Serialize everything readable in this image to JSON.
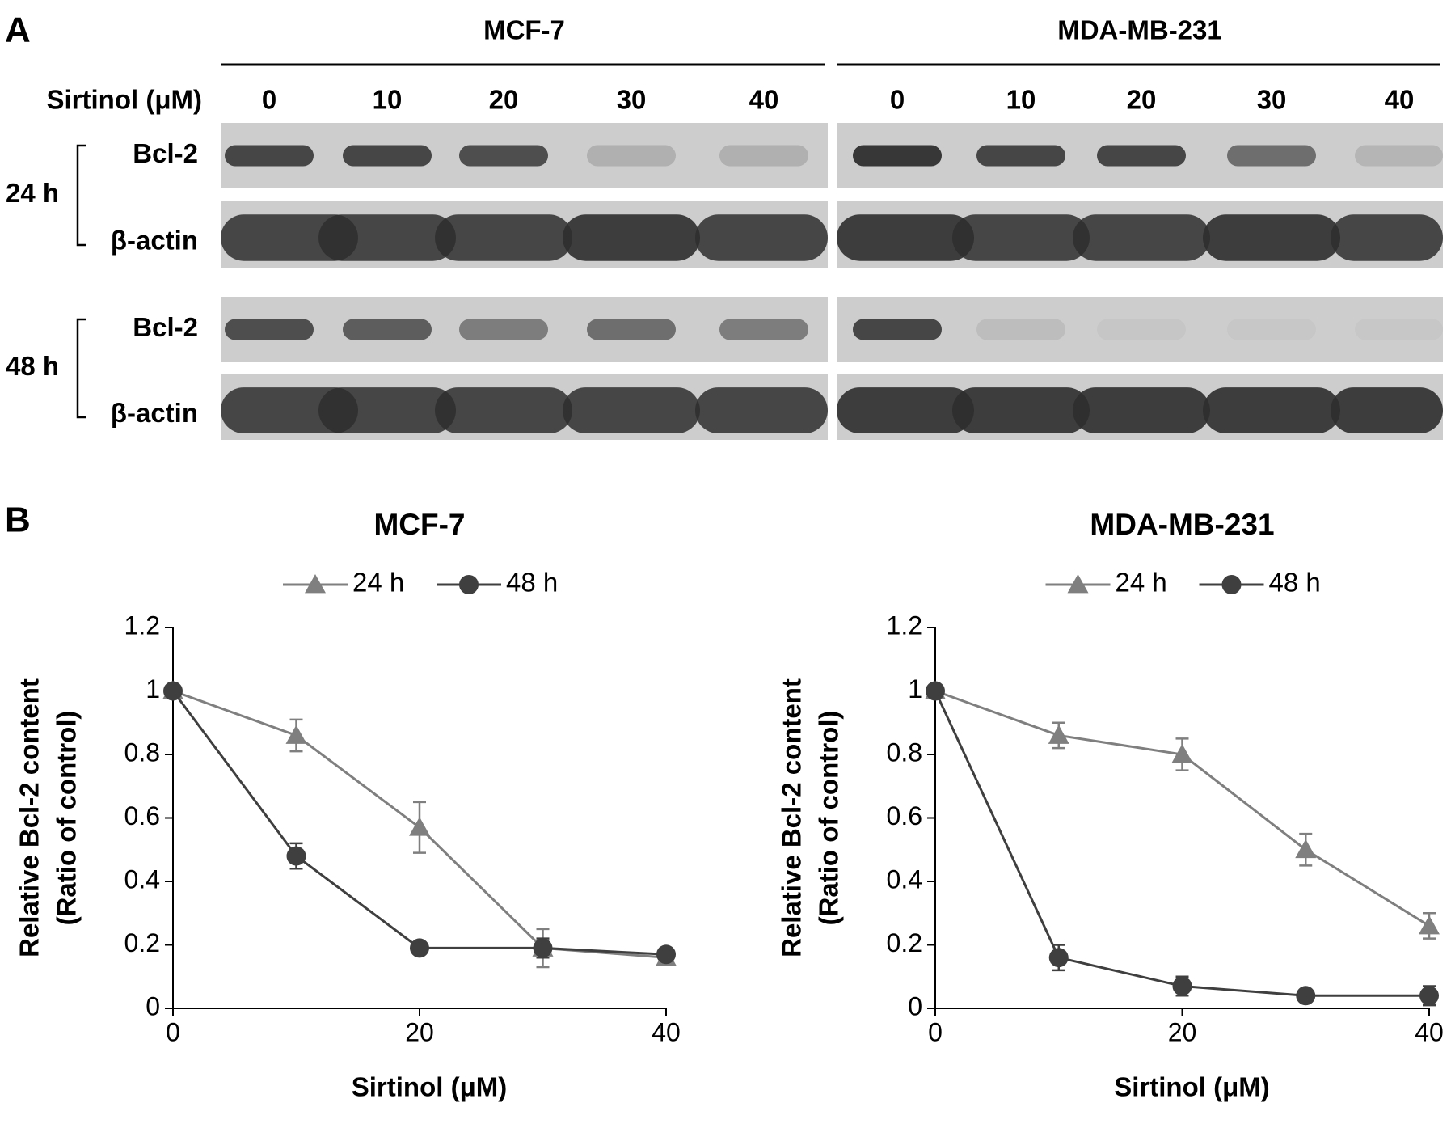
{
  "panel_a": {
    "label": "A",
    "dose_label": "Sirtinol (μM)",
    "groups": [
      {
        "name": "MCF-7",
        "doses": [
          0,
          10,
          20,
          30,
          40
        ]
      },
      {
        "name": "MDA-MB-231",
        "doses": [
          0,
          10,
          20,
          30,
          40
        ]
      }
    ],
    "timepoints": [
      {
        "label": "24 h",
        "rows": [
          "Bcl-2",
          "β-actin"
        ]
      },
      {
        "label": "48 h",
        "rows": [
          "Bcl-2",
          "β-actin"
        ]
      }
    ]
  },
  "panel_b": {
    "label": "B"
  },
  "chart_data": [
    {
      "type": "line",
      "title": "MCF-7",
      "x": [
        0,
        10,
        20,
        30,
        40
      ],
      "series": [
        {
          "name": "24 h",
          "color": "#7f7f7f",
          "marker": "triangle",
          "values": [
            1,
            0.86,
            0.57,
            0.19,
            0.16
          ],
          "errors": [
            0,
            0.05,
            0.08,
            0.06,
            0.01
          ]
        },
        {
          "name": "48 h",
          "color": "#3f3f3f",
          "marker": "circle",
          "values": [
            1,
            0.48,
            0.19,
            0.19,
            0.17
          ],
          "errors": [
            0,
            0.04,
            0.01,
            0.03,
            0.01
          ]
        }
      ],
      "xlabel": "Sirtinol (μM)",
      "ylabel": [
        "Relative Bcl-2 content",
        "(Ratio of control)"
      ],
      "xlim": [
        0,
        40
      ],
      "xticks": [
        0,
        20,
        40
      ],
      "ylim": [
        0,
        1.2
      ],
      "yticks": [
        0,
        0.2,
        0.4,
        0.6,
        0.8,
        1,
        1.2
      ],
      "legend": "top"
    },
    {
      "type": "line",
      "title": "MDA-MB-231",
      "x": [
        0,
        10,
        20,
        30,
        40
      ],
      "series": [
        {
          "name": "24 h",
          "color": "#7f7f7f",
          "marker": "triangle",
          "values": [
            1,
            0.86,
            0.8,
            0.5,
            0.26
          ],
          "errors": [
            0,
            0.04,
            0.05,
            0.05,
            0.04
          ]
        },
        {
          "name": "48 h",
          "color": "#3f3f3f",
          "marker": "circle",
          "values": [
            1,
            0.16,
            0.07,
            0.04,
            0.04
          ],
          "errors": [
            0,
            0.04,
            0.03,
            0.01,
            0.03
          ]
        }
      ],
      "xlabel": "Sirtinol (μM)",
      "ylabel": [
        "Relative Bcl-2 content",
        "(Ratio of control)"
      ],
      "xlim": [
        0,
        40
      ],
      "xticks": [
        0,
        20,
        40
      ],
      "ylim": [
        0,
        1.2
      ],
      "yticks": [
        0,
        0.2,
        0.4,
        0.6,
        0.8,
        1,
        1.2
      ],
      "legend": "top"
    }
  ]
}
